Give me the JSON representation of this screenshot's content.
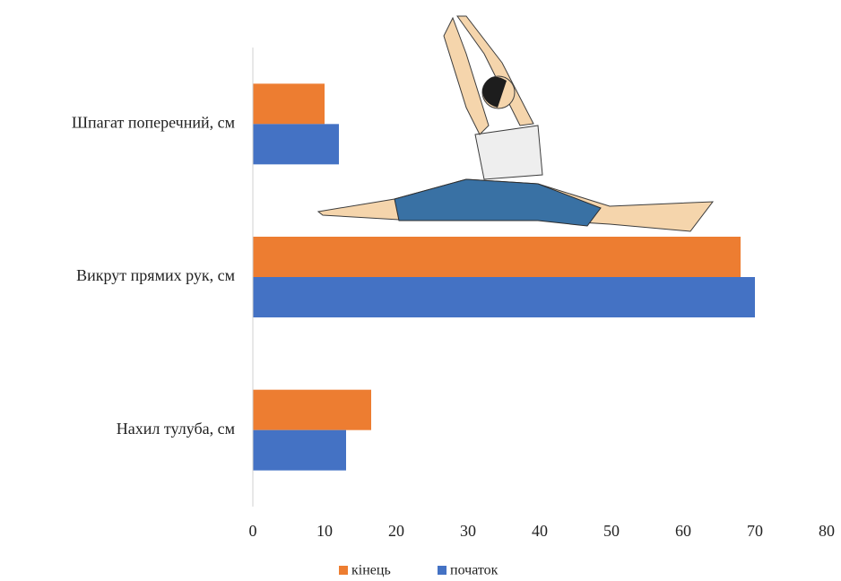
{
  "chart_data": {
    "type": "hbar",
    "categories": [
      "Шпагат поперечний, см",
      "Викрут прямих рук, см",
      "Нахил тулуба, см"
    ],
    "series": [
      {
        "name": "кінець",
        "color": "#ed7d31",
        "values": [
          10,
          68,
          16.5
        ]
      },
      {
        "name": "початок",
        "color": "#4472c4",
        "values": [
          12,
          70,
          13
        ]
      }
    ],
    "xlim": [
      0,
      80
    ],
    "xticks": [
      0,
      10,
      20,
      30,
      40,
      50,
      60,
      70,
      80
    ],
    "grid": false,
    "legend": "bottom"
  }
}
